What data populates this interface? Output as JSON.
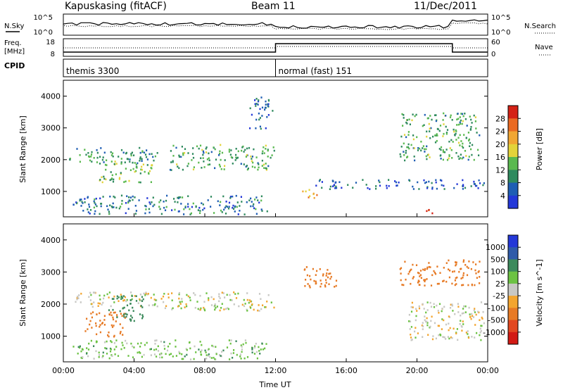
{
  "header": {
    "station": "Kapuskasing (fitACF)",
    "beam": "Beam 11",
    "date": "11/Dec/2011"
  },
  "labels": {
    "nsky": "N.Sky",
    "freq_top": "Freq.",
    "freq_unit": "[MHz]",
    "cpid": "CPID",
    "nsearch": "N.Search",
    "nave": "Nave"
  },
  "scales": {
    "noise_top": "10^5",
    "noise_bot": "10^0",
    "freq_top": "18",
    "freq_bot": "8",
    "nave_top": "60",
    "nave_bot": "0"
  },
  "modes": [
    {
      "name": "themis 3300",
      "start_hour": 0
    },
    {
      "name": "normal (fast) 151",
      "start_hour": 12
    }
  ],
  "colors": {
    "power": [
      "#2438d8",
      "#1f5eb4",
      "#2f8a5e",
      "#5ab94f",
      "#e3d33a",
      "#f1a633",
      "#ea6a22",
      "#d42216"
    ],
    "velocity": [
      "#2438d8",
      "#2f5ba9",
      "#3c8a5c",
      "#6cc243",
      "#c8c8c4",
      "#f3a52f",
      "#e77a25",
      "#e24820",
      "#d21a14"
    ],
    "gray": "#c8c8c4"
  },
  "chart_data": [
    {
      "type": "heatmap",
      "name": "Power",
      "colorbar_label": "Power [dB]",
      "colorbar_ticks": [
        "4",
        "8",
        "12",
        "16",
        "20",
        "24",
        "28"
      ],
      "ylabel": "Slant Range [km]",
      "yticks": [
        "1000",
        "2000",
        "3000",
        "4000"
      ],
      "ylim": [
        200,
        4500
      ],
      "xlim": [
        0,
        24
      ],
      "features": [
        {
          "x": [
            0.3,
            5.3
          ],
          "y": [
            1900,
            2400
          ],
          "v": 10
        },
        {
          "x": [
            2.0,
            5.0
          ],
          "y": [
            1300,
            2000
          ],
          "v": 14
        },
        {
          "x": [
            6.0,
            11.9
          ],
          "y": [
            1700,
            2500
          ],
          "v": 12
        },
        {
          "x": [
            0.5,
            11.5
          ],
          "y": [
            300,
            900
          ],
          "v": 8
        },
        {
          "x": [
            10.5,
            11.8
          ],
          "y": [
            3000,
            4000
          ],
          "v": 6
        },
        {
          "x": [
            13.5,
            14.5
          ],
          "y": [
            800,
            1100
          ],
          "v": 22
        },
        {
          "x": [
            14.0,
            23.8
          ],
          "y": [
            1100,
            1400
          ],
          "v": 6
        },
        {
          "x": [
            19.0,
            23.5
          ],
          "y": [
            2000,
            3500
          ],
          "v": 12
        },
        {
          "x": [
            20.5,
            21.5
          ],
          "y": [
            300,
            450
          ],
          "v": 28
        }
      ]
    },
    {
      "type": "heatmap",
      "name": "Velocity",
      "colorbar_label": "Velocity [m s^-1]",
      "colorbar_ticks": [
        "1000",
        "500",
        "100",
        "25",
        "-25",
        "-100",
        "-500",
        "-1000"
      ],
      "ylabel": "Slant Range [km]",
      "yticks": [
        "1000",
        "2000",
        "3000",
        "4000"
      ],
      "ylim": [
        200,
        4500
      ],
      "xlim": [
        0,
        24
      ],
      "xticks": [
        "00:00",
        "04:00",
        "08:00",
        "12:00",
        "16:00",
        "20:00",
        "00:00"
      ],
      "xlabel": "Time UT",
      "features": [
        {
          "x": [
            0.3,
            5.3
          ],
          "y": [
            1900,
            2400
          ],
          "v": 0
        },
        {
          "x": [
            1.2,
            3.5
          ],
          "y": [
            1000,
            1800
          ],
          "v": -300
        },
        {
          "x": [
            2.5,
            4.5
          ],
          "y": [
            1500,
            2300
          ],
          "v": 200
        },
        {
          "x": [
            5.5,
            11.9
          ],
          "y": [
            1800,
            2400
          ],
          "v": 0
        },
        {
          "x": [
            0.5,
            11.5
          ],
          "y": [
            300,
            900
          ],
          "v": 50
        },
        {
          "x": [
            13.5,
            15.5
          ],
          "y": [
            2500,
            3200
          ],
          "v": -400
        },
        {
          "x": [
            19.0,
            23.5
          ],
          "y": [
            2600,
            3400
          ],
          "v": -400
        },
        {
          "x": [
            19.5,
            23.8
          ],
          "y": [
            900,
            2100
          ],
          "v": 0
        }
      ]
    }
  ]
}
